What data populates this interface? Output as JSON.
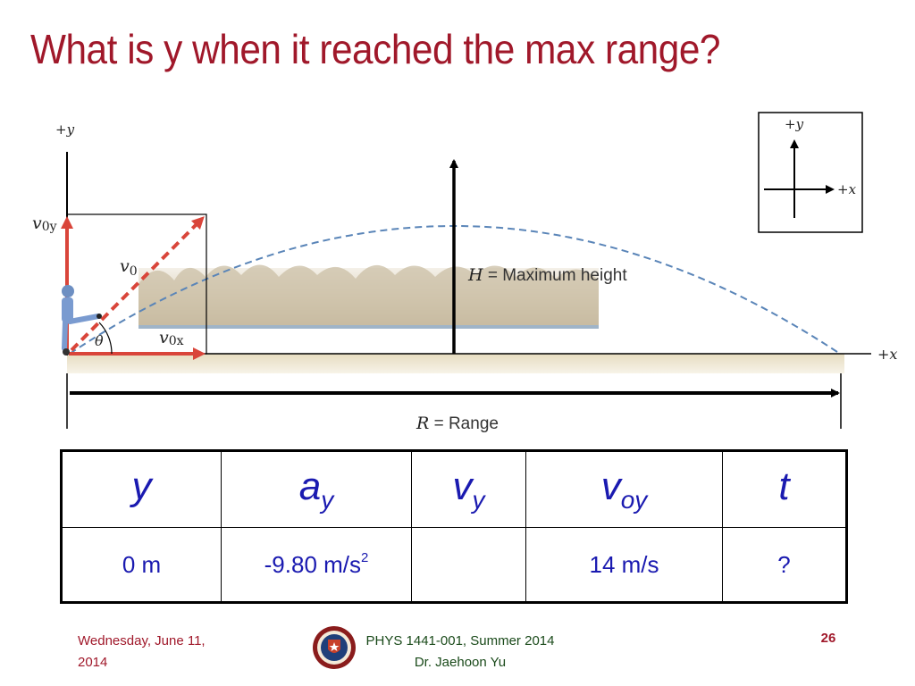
{
  "slide": {
    "title": "What is y when it reached the max range?"
  },
  "figure": {
    "axis_y_label": "+y",
    "axis_x_label": "+x",
    "v0y_label": "v",
    "v0y_sub": "0y",
    "v0_label": "v",
    "v0_sub": "0",
    "v0x_label": "v",
    "v0x_sub": "0x",
    "theta_label": "θ",
    "max_height_symbol": "H",
    "max_height_text": " = Maximum height",
    "range_symbol": "R",
    "range_text": " = Range",
    "inset_y_label": "+y",
    "inset_x_label": "+x",
    "colors": {
      "velocity_arrows": "#d9453a",
      "trajectory": "#5a85b8",
      "axes": "#000000",
      "ground": "#d8ccaa"
    }
  },
  "table": {
    "headers": [
      {
        "base": "y",
        "sub": ""
      },
      {
        "base": "a",
        "sub": "y"
      },
      {
        "base": "v",
        "sub": "y"
      },
      {
        "base": "v",
        "sub": "oy"
      },
      {
        "base": "t",
        "sub": ""
      }
    ],
    "values": [
      {
        "text": "0 m",
        "sup": ""
      },
      {
        "text": "-9.80 m/s",
        "sup": "2"
      },
      {
        "text": "",
        "sup": ""
      },
      {
        "text": "14 m/s",
        "sup": ""
      },
      {
        "text": "?",
        "sup": ""
      }
    ]
  },
  "footer": {
    "date_line1": "Wednesday, June 11,",
    "date_line2": "2014",
    "course_line1": "PHYS 1441-001, Summer 2014",
    "course_line2": "Dr. Jaehoon Yu",
    "page_number": "26",
    "seal_icon": "university-seal-icon"
  }
}
